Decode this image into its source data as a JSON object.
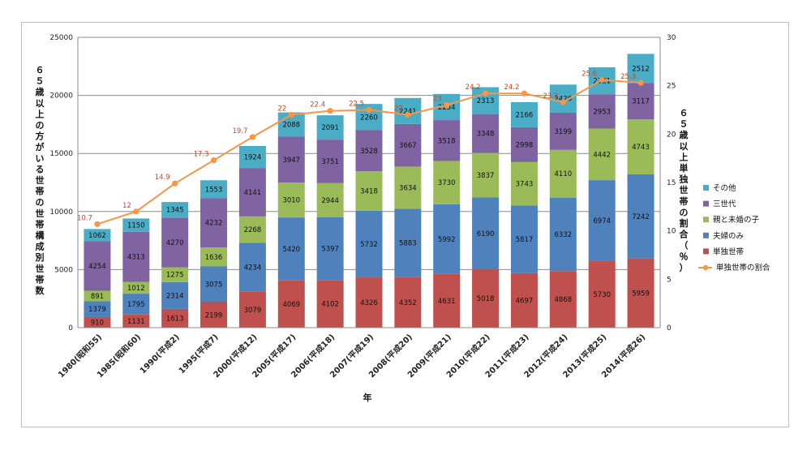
{
  "chart_data": {
    "type": "bar",
    "stacked": true,
    "categories": [
      "1980(昭和55)",
      "1985(昭和60)",
      "1990(平成2)",
      "1995(平成7)",
      "2000(平成12)",
      "2005(平成17)",
      "2006(平成18)",
      "2007(平成19)",
      "2008(平成20)",
      "2009(平成21)",
      "2010(平成22)",
      "2011(平成23)",
      "2012(平成24)",
      "2013(平成25)",
      "2014(平成26)"
    ],
    "series": [
      {
        "name": "単独世帯",
        "color": "#c0504d",
        "values": [
          910,
          1131,
          1613,
          2199,
          3079,
          4069,
          4102,
          4326,
          4352,
          4631,
          5018,
          4697,
          4868,
          5730,
          5959
        ]
      },
      {
        "name": "夫婦のみ",
        "color": "#4f81bd",
        "values": [
          1379,
          1795,
          2314,
          3075,
          4234,
          5420,
          5397,
          5732,
          5883,
          5992,
          6190,
          5817,
          6332,
          6974,
          7242
        ]
      },
      {
        "name": "親と未婚の子",
        "color": "#9bbb59",
        "values": [
          891,
          1012,
          1275,
          1636,
          2268,
          3010,
          2944,
          3418,
          3634,
          3730,
          3837,
          3743,
          4110,
          4442,
          4743
        ]
      },
      {
        "name": "三世代",
        "color": "#8064a2",
        "values": [
          4254,
          4313,
          4270,
          4232,
          4141,
          3947,
          3751,
          3528,
          3667,
          3518,
          3348,
          2998,
          3199,
          2953,
          3117
        ]
      },
      {
        "name": "その他",
        "color": "#4bacc6",
        "values": [
          1062,
          1150,
          1345,
          1553,
          1924,
          2088,
          2091,
          2260,
          2241,
          2254,
          2313,
          2166,
          2420,
          2321,
          2512
        ]
      }
    ],
    "line": {
      "name": "単独世帯の割合",
      "color": "#f79646",
      "values": [
        10.7,
        12,
        14.9,
        17.3,
        19.7,
        22,
        22.4,
        22.5,
        22,
        23,
        24.2,
        24.2,
        23.3,
        25.6,
        25.3
      ],
      "axis": "right"
    },
    "y_left": {
      "label": "６５歳以上の方がいる世帯の世帯構成別世帯数",
      "ylim": [
        0,
        25000
      ],
      "ticks": [
        "0",
        "5000",
        "10000",
        "15000",
        "20000",
        "25000"
      ]
    },
    "y_right": {
      "label": "６５歳以上単独世帯の割合（％）",
      "ylim": [
        0,
        30
      ],
      "ticks": [
        "0",
        "5",
        "10",
        "15",
        "20",
        "25",
        "30"
      ]
    },
    "xlabel": "年",
    "legend": {
      "placement": "right",
      "order": [
        "その他",
        "三世代",
        "親と未婚の子",
        "夫婦のみ",
        "単独世帯",
        "単独世帯の割合"
      ]
    },
    "grid": true
  }
}
